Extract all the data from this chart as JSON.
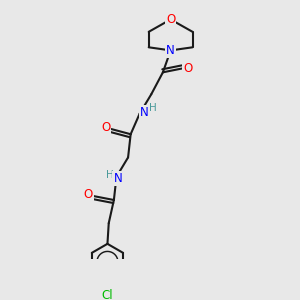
{
  "background_color": "#e8e8e8",
  "bond_color": "#1a1a1a",
  "N_color": "#0000ff",
  "O_color": "#ff0000",
  "Cl_color": "#00bb00",
  "H_color": "#4a9a9a",
  "figsize": [
    3.0,
    3.0
  ],
  "dpi": 100,
  "lw": 1.5,
  "fs": 8.5,
  "fs_small": 7.5,
  "xlim": [
    0,
    10
  ],
  "ylim": [
    0,
    10
  ]
}
